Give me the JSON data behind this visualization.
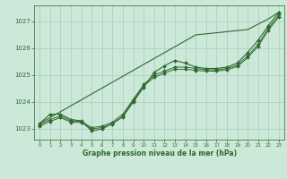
{
  "background_color": "#cce8d8",
  "grid_color": "#aaccbb",
  "line_color": "#2d6a2d",
  "text_color": "#2d6a2d",
  "xlabel": "Graphe pression niveau de la mer (hPa)",
  "ylim": [
    1022.6,
    1027.6
  ],
  "xlim": [
    -0.5,
    23.5
  ],
  "yticks": [
    1023,
    1024,
    1025,
    1026,
    1027
  ],
  "xticks": [
    0,
    1,
    2,
    3,
    4,
    5,
    6,
    7,
    8,
    9,
    10,
    11,
    12,
    13,
    14,
    15,
    16,
    17,
    18,
    19,
    20,
    21,
    22,
    23
  ],
  "series_straight": [
    1023.2,
    1023.42,
    1023.64,
    1023.86,
    1024.08,
    1024.3,
    1024.52,
    1024.74,
    1024.96,
    1025.18,
    1025.4,
    1025.62,
    1025.84,
    1026.06,
    1026.28,
    1026.5,
    1026.54,
    1026.58,
    1026.62,
    1026.66,
    1026.7,
    1026.9,
    1027.1,
    1027.35
  ],
  "series_wavy": [
    1023.2,
    1023.55,
    1023.55,
    1023.35,
    1023.3,
    1022.92,
    1023.0,
    1023.2,
    1023.45,
    1024.0,
    1024.55,
    1025.1,
    1025.35,
    1025.55,
    1025.45,
    1025.3,
    1025.25,
    1025.25,
    1025.3,
    1025.45,
    1025.85,
    1026.3,
    1026.85,
    1027.35
  ],
  "series_mid1": [
    1023.15,
    1023.35,
    1023.48,
    1023.3,
    1023.28,
    1023.05,
    1023.1,
    1023.25,
    1023.55,
    1024.1,
    1024.65,
    1025.0,
    1025.15,
    1025.3,
    1025.3,
    1025.25,
    1025.2,
    1025.2,
    1025.25,
    1025.38,
    1025.72,
    1026.15,
    1026.75,
    1027.25
  ],
  "series_mid2": [
    1023.1,
    1023.28,
    1023.42,
    1023.25,
    1023.24,
    1023.0,
    1023.05,
    1023.18,
    1023.48,
    1024.05,
    1024.6,
    1024.92,
    1025.08,
    1025.22,
    1025.22,
    1025.18,
    1025.15,
    1025.15,
    1025.2,
    1025.32,
    1025.65,
    1026.08,
    1026.68,
    1027.18
  ]
}
